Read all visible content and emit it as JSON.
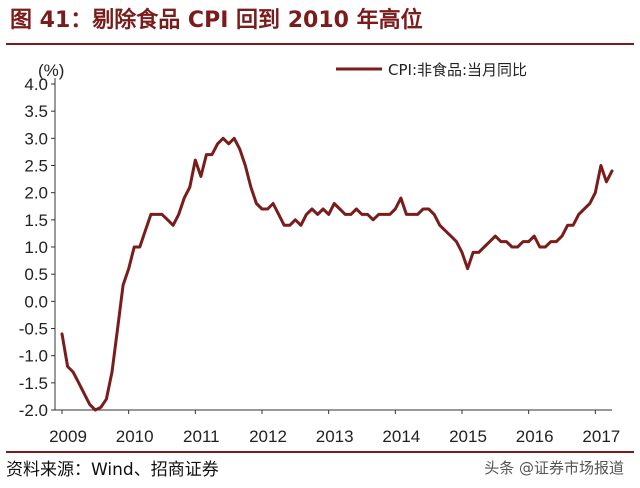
{
  "header": {
    "title": "图 41：剔除食品 CPI 回到 2010 年高位"
  },
  "footer": {
    "source": "资料来源：Wind、招商证券",
    "watermark": "头条 @证券市场报道"
  },
  "colors": {
    "accent": "#7a1c1c",
    "series_line": "#7a1c1c"
  },
  "chart_data": {
    "type": "line",
    "title": "",
    "xlabel": "",
    "ylabel": "(%)",
    "xlim": [
      "2009-01",
      "2017-04"
    ],
    "ylim": [
      -2.0,
      4.0
    ],
    "y_ticks": [
      "4.0",
      "3.5",
      "3.0",
      "2.5",
      "2.0",
      "1.5",
      "1.0",
      "0.5",
      "0.0",
      "-0.5",
      "-1.0",
      "-1.5",
      "-2.0"
    ],
    "x_ticks": [
      "2009",
      "2010",
      "2011",
      "2012",
      "2013",
      "2014",
      "2015",
      "2016",
      "2017"
    ],
    "grid": false,
    "legend_position": "top-right",
    "series": [
      {
        "name": "CPI:非食品:当月同比",
        "color": "#7a1c1c",
        "points": [
          [
            "2009-01",
            -0.6
          ],
          [
            "2009-02",
            -1.2
          ],
          [
            "2009-03",
            -1.3
          ],
          [
            "2009-04",
            -1.5
          ],
          [
            "2009-05",
            -1.7
          ],
          [
            "2009-06",
            -1.9
          ],
          [
            "2009-07",
            -2.0
          ],
          [
            "2009-08",
            -1.95
          ],
          [
            "2009-09",
            -1.8
          ],
          [
            "2009-10",
            -1.3
          ],
          [
            "2009-11",
            -0.5
          ],
          [
            "2009-12",
            0.3
          ],
          [
            "2010-01",
            0.6
          ],
          [
            "2010-02",
            1.0
          ],
          [
            "2010-03",
            1.0
          ],
          [
            "2010-04",
            1.3
          ],
          [
            "2010-05",
            1.6
          ],
          [
            "2010-06",
            1.6
          ],
          [
            "2010-07",
            1.6
          ],
          [
            "2010-08",
            1.5
          ],
          [
            "2010-09",
            1.4
          ],
          [
            "2010-10",
            1.6
          ],
          [
            "2010-11",
            1.9
          ],
          [
            "2010-12",
            2.1
          ],
          [
            "2011-01",
            2.6
          ],
          [
            "2011-02",
            2.3
          ],
          [
            "2011-03",
            2.7
          ],
          [
            "2011-04",
            2.7
          ],
          [
            "2011-05",
            2.9
          ],
          [
            "2011-06",
            3.0
          ],
          [
            "2011-07",
            2.9
          ],
          [
            "2011-08",
            3.0
          ],
          [
            "2011-09",
            2.8
          ],
          [
            "2011-10",
            2.5
          ],
          [
            "2011-11",
            2.1
          ],
          [
            "2011-12",
            1.8
          ],
          [
            "2012-01",
            1.7
          ],
          [
            "2012-02",
            1.7
          ],
          [
            "2012-03",
            1.8
          ],
          [
            "2012-04",
            1.6
          ],
          [
            "2012-05",
            1.4
          ],
          [
            "2012-06",
            1.4
          ],
          [
            "2012-07",
            1.5
          ],
          [
            "2012-08",
            1.4
          ],
          [
            "2012-09",
            1.6
          ],
          [
            "2012-10",
            1.7
          ],
          [
            "2012-11",
            1.6
          ],
          [
            "2012-12",
            1.7
          ],
          [
            "2013-01",
            1.6
          ],
          [
            "2013-02",
            1.8
          ],
          [
            "2013-03",
            1.7
          ],
          [
            "2013-04",
            1.6
          ],
          [
            "2013-05",
            1.6
          ],
          [
            "2013-06",
            1.7
          ],
          [
            "2013-07",
            1.6
          ],
          [
            "2013-08",
            1.6
          ],
          [
            "2013-09",
            1.5
          ],
          [
            "2013-10",
            1.6
          ],
          [
            "2013-11",
            1.6
          ],
          [
            "2013-12",
            1.6
          ],
          [
            "2014-01",
            1.7
          ],
          [
            "2014-02",
            1.9
          ],
          [
            "2014-03",
            1.6
          ],
          [
            "2014-04",
            1.6
          ],
          [
            "2014-05",
            1.6
          ],
          [
            "2014-06",
            1.7
          ],
          [
            "2014-07",
            1.7
          ],
          [
            "2014-08",
            1.6
          ],
          [
            "2014-09",
            1.4
          ],
          [
            "2014-10",
            1.3
          ],
          [
            "2014-11",
            1.2
          ],
          [
            "2014-12",
            1.1
          ],
          [
            "2015-01",
            0.9
          ],
          [
            "2015-02",
            0.6
          ],
          [
            "2015-03",
            0.9
          ],
          [
            "2015-04",
            0.9
          ],
          [
            "2015-05",
            1.0
          ],
          [
            "2015-06",
            1.1
          ],
          [
            "2015-07",
            1.2
          ],
          [
            "2015-08",
            1.1
          ],
          [
            "2015-09",
            1.1
          ],
          [
            "2015-10",
            1.0
          ],
          [
            "2015-11",
            1.0
          ],
          [
            "2015-12",
            1.1
          ],
          [
            "2016-01",
            1.1
          ],
          [
            "2016-02",
            1.2
          ],
          [
            "2016-03",
            1.0
          ],
          [
            "2016-04",
            1.0
          ],
          [
            "2016-05",
            1.1
          ],
          [
            "2016-06",
            1.1
          ],
          [
            "2016-07",
            1.2
          ],
          [
            "2016-08",
            1.4
          ],
          [
            "2016-09",
            1.4
          ],
          [
            "2016-10",
            1.6
          ],
          [
            "2016-11",
            1.7
          ],
          [
            "2016-12",
            1.8
          ],
          [
            "2017-01",
            2.0
          ],
          [
            "2017-02",
            2.5
          ],
          [
            "2017-03",
            2.2
          ],
          [
            "2017-04",
            2.4
          ]
        ]
      }
    ]
  }
}
